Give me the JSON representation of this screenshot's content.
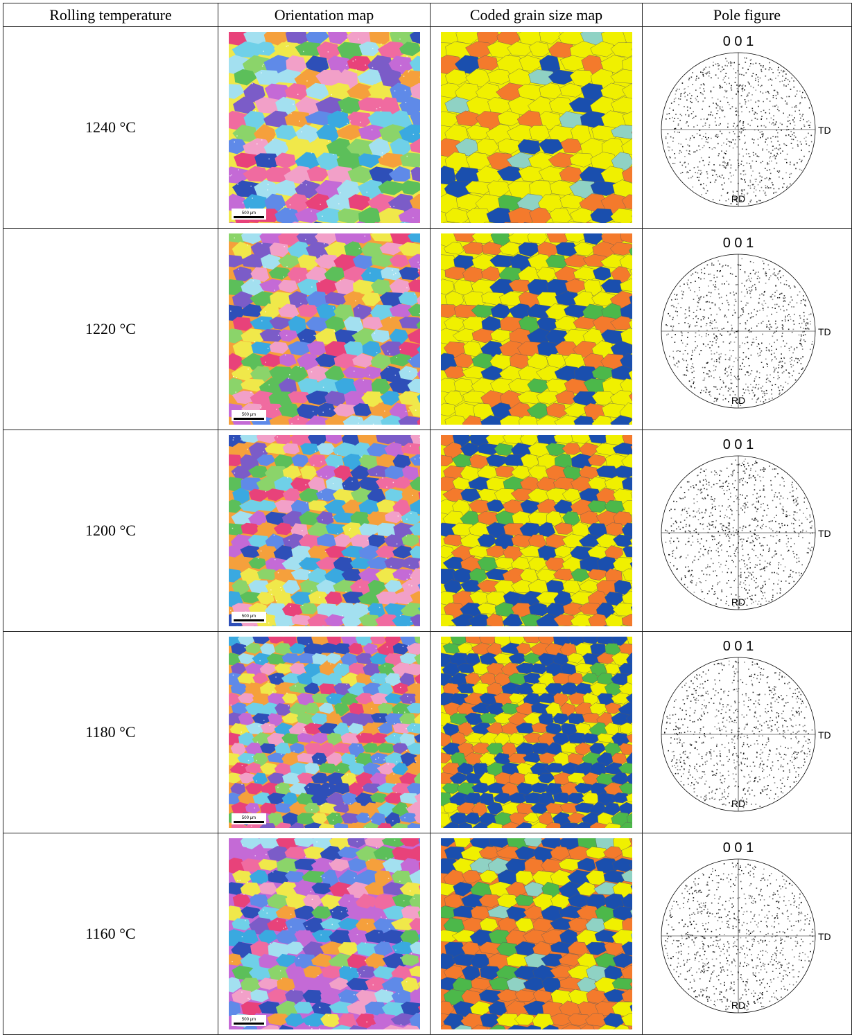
{
  "table": {
    "headers": [
      "Rolling temperature",
      "Orientation map",
      "Coded grain size map",
      "Pole figure"
    ],
    "rows": [
      {
        "temperature": "1240 °C",
        "orientation_map": {
          "scale_bar_label": "500 μm",
          "grain_size": 1.0
        },
        "grain_size_map": {
          "mix": {
            "yellow": 0.66,
            "orange": 0.17,
            "blue": 0.09,
            "green": 0.03,
            "teal": 0.05
          }
        },
        "pole_figure": {
          "title": "0 0 1",
          "td_label": "TD",
          "rd_label": "RD"
        }
      },
      {
        "temperature": "1220 °C",
        "orientation_map": {
          "scale_bar_label": "500 μm",
          "grain_size": 0.85
        },
        "grain_size_map": {
          "mix": {
            "yellow": 0.4,
            "orange": 0.28,
            "blue": 0.26,
            "green": 0.06,
            "teal": 0.0
          }
        },
        "pole_figure": {
          "title": "0 0 1",
          "td_label": "TD",
          "rd_label": "RD"
        }
      },
      {
        "temperature": "1200 °C",
        "orientation_map": {
          "scale_bar_label": "500 μm",
          "grain_size": 0.75
        },
        "grain_size_map": {
          "mix": {
            "yellow": 0.33,
            "orange": 0.3,
            "blue": 0.3,
            "green": 0.07,
            "teal": 0.0
          }
        },
        "pole_figure": {
          "title": "0 0 1",
          "td_label": "TD",
          "rd_label": "RD"
        }
      },
      {
        "temperature": "1180 °C",
        "orientation_map": {
          "scale_bar_label": "500 μm",
          "grain_size": 0.6
        },
        "grain_size_map": {
          "mix": {
            "yellow": 0.18,
            "orange": 0.3,
            "blue": 0.4,
            "green": 0.12,
            "teal": 0.0
          }
        },
        "pole_figure": {
          "title": "0 0 1",
          "td_label": "TD",
          "rd_label": "RD"
        }
      },
      {
        "temperature": "1160 °C",
        "orientation_map": {
          "scale_bar_label": "500 μm",
          "grain_size": 0.8
        },
        "grain_size_map": {
          "mix": {
            "yellow": 0.2,
            "orange": 0.25,
            "blue": 0.37,
            "green": 0.1,
            "teal": 0.08
          }
        },
        "pole_figure": {
          "title": "0 0 1",
          "td_label": "TD",
          "rd_label": "RD"
        }
      }
    ]
  },
  "colors": {
    "grain_size_yellow": "#f0f000",
    "grain_size_orange": "#f47a2c",
    "grain_size_blue": "#1a4fae",
    "grain_size_green": "#4cb84a",
    "grain_size_teal": "#8fd2c4",
    "orientation_palette": [
      "#e8427a",
      "#f06ba0",
      "#7b5cc8",
      "#5f8ae8",
      "#3aa9e0",
      "#6fd0e8",
      "#8bd46a",
      "#5cbf5a",
      "#f0e84a",
      "#f5a03c",
      "#c46ad6",
      "#f2a0c8",
      "#2e4fb8",
      "#a3e0f0"
    ]
  }
}
